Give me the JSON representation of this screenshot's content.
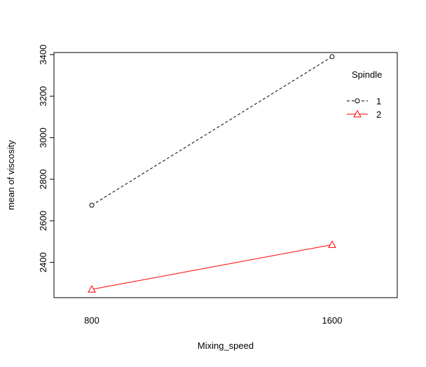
{
  "chart_data": {
    "type": "line",
    "title": "",
    "xlabel": "Mixing_speed",
    "ylabel": "mean of viscosity",
    "categories": [
      "800",
      "1600"
    ],
    "ylim": [
      2230,
      3410
    ],
    "yticks": [
      2400,
      2600,
      2800,
      3000,
      3200,
      3400
    ],
    "grid": false,
    "legend": {
      "title": "Spindle",
      "placement": "top-right"
    },
    "series": [
      {
        "name": "1",
        "values": [
          2675,
          3390
        ],
        "color": "#000000",
        "line_style": "dashed",
        "marker": "circle"
      },
      {
        "name": "2",
        "values": [
          2270,
          2485
        ],
        "color": "#ff0000",
        "line_style": "solid",
        "marker": "triangle"
      }
    ]
  }
}
